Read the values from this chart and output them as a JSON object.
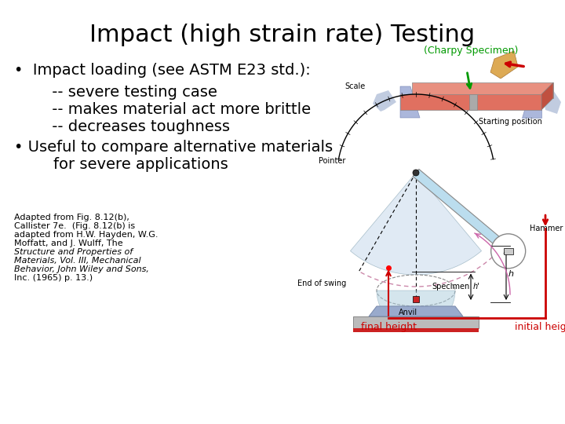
{
  "title": "Impact (high strain rate) Testing",
  "title_fontsize": 22,
  "title_color": "#000000",
  "background_color": "#ffffff",
  "bullet1": "•  Impact loading (see ASTM E23 std.):",
  "sub1": "     -- severe testing case",
  "sub2": "     -- makes material act more brittle",
  "sub3": "     -- decreases toughness",
  "bullet2": "• Useful to compare alternative materials",
  "sub4": "        for severe applications",
  "charpy_label": "(Charpy Specimen)",
  "charpy_label_color": "#009900",
  "final_height_label": "final height",
  "final_height_color": "#cc0000",
  "initial_height_label": "initial height",
  "initial_height_color": "#cc0000",
  "caption_lines": [
    [
      "Adapted from Fig. 8.12(b),",
      "normal"
    ],
    [
      "Callister 7e.  (Fig. 8.12(b) is",
      "normal"
    ],
    [
      "adapted from H.W. Hayden, W.G.",
      "normal"
    ],
    [
      "Moffatt, and J. Wulff, ",
      "normal"
    ],
    [
      "The",
      "normal"
    ],
    [
      "Structure and Properties of",
      "italic"
    ],
    [
      "Materials, Vol. III, Mechanical",
      "italic"
    ],
    [
      "Behavior, John Wiley and Sons,",
      "italic"
    ],
    [
      "Inc. (1965) p. 13.)",
      "normal"
    ]
  ],
  "text_fontsize": 14,
  "sub_fontsize": 14,
  "caption_fontsize": 8
}
